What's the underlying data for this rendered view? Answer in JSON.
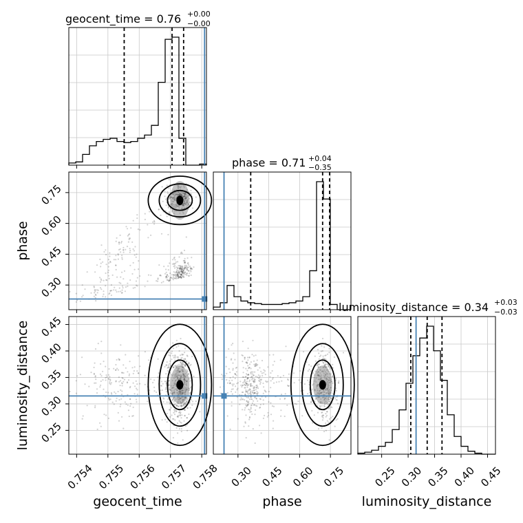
{
  "chart_data": {
    "type": "corner",
    "truth_color": "#4682b4",
    "parameters": [
      {
        "name": "geocent_time",
        "xlabel": "geocent_time",
        "title_main": "geocent_time = 0.76",
        "title_sup": "+0.00",
        "title_sub": "−0.00",
        "range": [
          0.75375,
          0.75815
        ],
        "ticks": [
          0.754,
          0.755,
          0.756,
          0.757,
          0.758
        ],
        "tick_labels": [
          "0.754",
          "0.755",
          "0.756",
          "0.757",
          "0.758"
        ],
        "truth": 0.75809,
        "quantiles": [
          0.75552,
          0.75705,
          0.75742
        ],
        "hist_edges": [
          0.75375,
          0.75397,
          0.75419,
          0.75441,
          0.75463,
          0.75485,
          0.75507,
          0.75529,
          0.75551,
          0.75573,
          0.75595,
          0.75617,
          0.75639,
          0.75661,
          0.75683,
          0.75705,
          0.75727,
          0.75749,
          0.75771,
          0.75793,
          0.75815
        ],
        "hist_counts": [
          2,
          3,
          10,
          18,
          22,
          24,
          25,
          22,
          21,
          22,
          25,
          28,
          37,
          77,
          117,
          119,
          25,
          0,
          0,
          1
        ]
      },
      {
        "name": "phase",
        "xlabel": "phase",
        "ylabel": "phase",
        "title_main": "phase = 0.71",
        "title_sup": "+0.04",
        "title_sub": "−0.35",
        "range": [
          0.18,
          0.85
        ],
        "ticks": [
          0.3,
          0.45,
          0.6,
          0.75
        ],
        "tick_labels": [
          "0.30",
          "0.45",
          "0.60",
          "0.75"
        ],
        "truth": 0.232,
        "quantiles": [
          0.362,
          0.712,
          0.746
        ],
        "hist_edges": [
          0.18,
          0.2135,
          0.247,
          0.2805,
          0.314,
          0.3475,
          0.381,
          0.4145,
          0.448,
          0.4815,
          0.515,
          0.5485,
          0.582,
          0.6155,
          0.649,
          0.6825,
          0.716,
          0.7495,
          0.783,
          0.8165,
          0.85
        ],
        "hist_counts": [
          3,
          8,
          28,
          15,
          10,
          8,
          7,
          6,
          6,
          6,
          7,
          8,
          10,
          15,
          45,
          148,
          128,
          6,
          0,
          0
        ]
      },
      {
        "name": "luminosity_distance",
        "xlabel": "luminosity_distance",
        "ylabel": "luminosity_distance",
        "title_main": "luminosity_distance = 0.34",
        "title_sup": "+0.03",
        "title_sub": "−0.03",
        "range": [
          0.205,
          0.465
        ],
        "ticks": [
          0.25,
          0.3,
          0.35,
          0.4,
          0.45
        ],
        "tick_labels": [
          "0.25",
          "0.30",
          "0.35",
          "0.40",
          "0.45"
        ],
        "truth": 0.315,
        "quantiles": [
          0.305,
          0.336,
          0.364
        ],
        "hist_edges": [
          0.205,
          0.218,
          0.231,
          0.244,
          0.257,
          0.27,
          0.283,
          0.296,
          0.309,
          0.322,
          0.335,
          0.348,
          0.361,
          0.374,
          0.387,
          0.4,
          0.413,
          0.426,
          0.439,
          0.452,
          0.465
        ],
        "hist_counts": [
          1,
          2,
          4,
          8,
          12,
          25,
          45,
          72,
          100,
          118,
          130,
          105,
          75,
          40,
          18,
          8,
          3,
          1,
          0,
          0
        ]
      }
    ],
    "grid": true
  }
}
